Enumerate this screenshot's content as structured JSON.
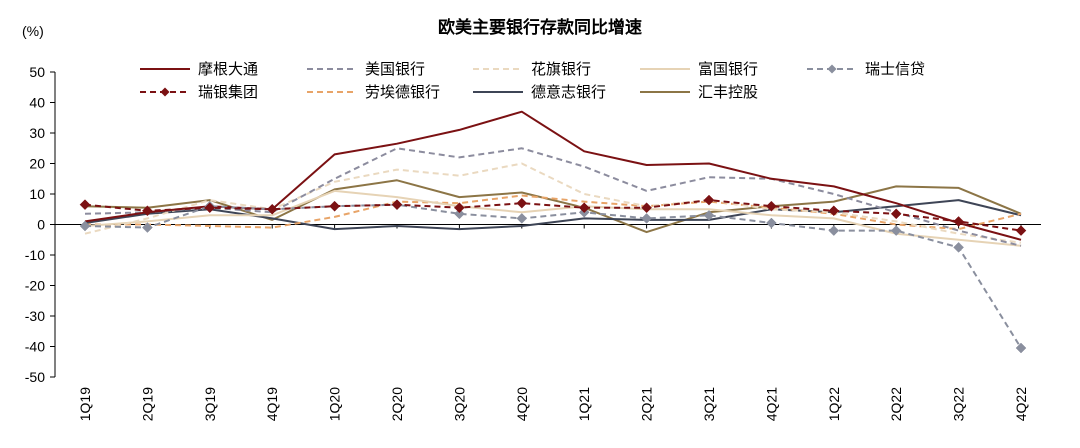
{
  "chart_data": {
    "type": "line",
    "title": "欧美主要银行存款同比增速",
    "ylabel": "(%)",
    "xlabel": "",
    "ylim": [
      -50,
      50
    ],
    "yticks": [
      50,
      40,
      30,
      20,
      10,
      0,
      -10,
      -20,
      -30,
      -40,
      -50
    ],
    "grid": false,
    "legend_position": "top",
    "categories": [
      "1Q19",
      "2Q19",
      "3Q19",
      "4Q19",
      "1Q20",
      "2Q20",
      "3Q20",
      "4Q20",
      "1Q21",
      "2Q21",
      "3Q21",
      "4Q21",
      "1Q22",
      "2Q22",
      "3Q22",
      "4Q22"
    ],
    "series": [
      {
        "name": "摩根大通",
        "color": "#7b1113",
        "dash": "solid",
        "marker": "none",
        "values": [
          1,
          4,
          6,
          5,
          23,
          26.5,
          31,
          37,
          24,
          19.5,
          20,
          15,
          12.5,
          7,
          0.5,
          -5
        ]
      },
      {
        "name": "美国银行",
        "color": "#8c8c9e",
        "dash": "dashed",
        "marker": "none",
        "values": [
          3.5,
          4,
          5.5,
          4,
          15,
          25,
          22,
          25,
          19,
          11,
          15.5,
          15,
          10,
          4,
          -2,
          -7
        ]
      },
      {
        "name": "花旗银行",
        "color": "#ead9c0",
        "dash": "dashed",
        "marker": "none",
        "values": [
          -3,
          2,
          8,
          5,
          14,
          18,
          16,
          20,
          10,
          6,
          8,
          5,
          4,
          1,
          -3,
          -6
        ]
      },
      {
        "name": "富国银行",
        "color": "#e6d3b5",
        "dash": "solid",
        "marker": "none",
        "values": [
          -0.5,
          1,
          3,
          3,
          11,
          9,
          6,
          4,
          6,
          5,
          5,
          3,
          2,
          -3,
          -5,
          -7
        ]
      },
      {
        "name": "瑞士信贷",
        "color": "#8a8f9e",
        "dash": "dashed",
        "marker": "diamond",
        "values": [
          -0.5,
          -1,
          6,
          5,
          6,
          6.5,
          3.5,
          2,
          4,
          2,
          3,
          0.5,
          -2,
          -2,
          -7.5,
          -40.5
        ]
      },
      {
        "name": "瑞银集团",
        "color": "#7b1113",
        "dash": "dashed",
        "marker": "diamond",
        "values": [
          6.5,
          4.5,
          5.5,
          5,
          6,
          6.5,
          5.5,
          7,
          5.5,
          5.5,
          8,
          6,
          4.5,
          3.5,
          1,
          -2
        ]
      },
      {
        "name": "劳埃德银行",
        "color": "#e8a468",
        "dash": "dashed",
        "marker": "none",
        "values": [
          0,
          0,
          -0.5,
          -1,
          2.5,
          7.5,
          7,
          9.5,
          7.5,
          6,
          7.5,
          5.5,
          3.5,
          0,
          -1.5,
          3.5
        ]
      },
      {
        "name": "德意志银行",
        "color": "#3e4556",
        "dash": "solid",
        "marker": "none",
        "values": [
          0.5,
          3.5,
          5,
          2,
          -1.5,
          -0.5,
          -1.5,
          -0.5,
          2,
          1.5,
          1.5,
          5,
          4,
          6,
          8,
          3
        ]
      },
      {
        "name": "汇丰控股",
        "color": "#8c7546",
        "dash": "solid",
        "marker": "none",
        "values": [
          6,
          5.5,
          8,
          1.5,
          11.5,
          14.5,
          9,
          10.5,
          5.5,
          -2.5,
          4,
          6,
          7.5,
          12.5,
          12,
          3.5
        ]
      }
    ]
  }
}
